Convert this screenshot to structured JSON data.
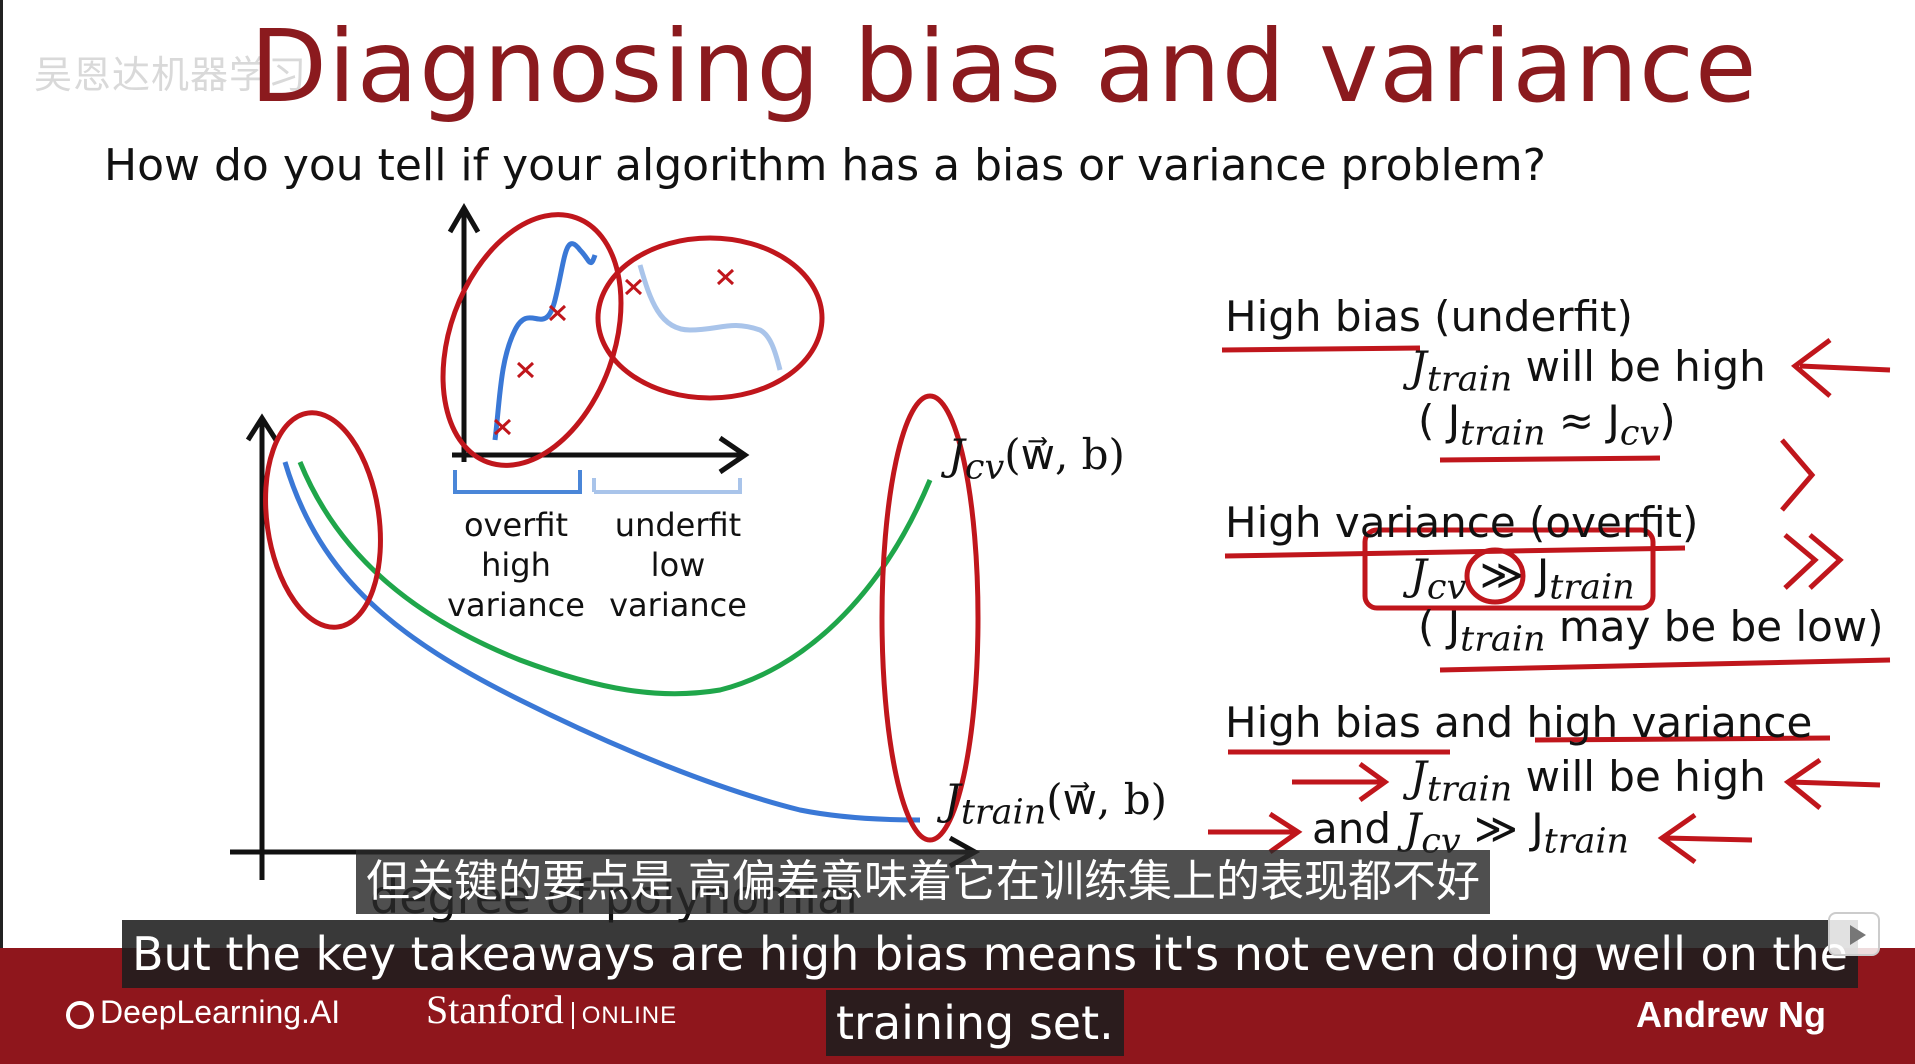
{
  "slide": {
    "watermark": "吴恩达机器学习",
    "title": "Diagnosing bias and variance",
    "question": "How do you tell if your algorithm has a bias or variance problem?",
    "x_axis_label": "degree of polynomial",
    "inset": {
      "left_label": [
        "overfit",
        "high",
        "variance"
      ],
      "right_label": [
        "underfit",
        "low",
        "variance"
      ]
    },
    "curve_labels": {
      "jcv": "J",
      "jcv_sub": "cv",
      "jcv_args": "(w⃗, b)",
      "jtrain": "J",
      "jtrain_sub": "train",
      "jtrain_args": "(w⃗, b)"
    },
    "right": {
      "high_bias_heading": "High bias (underfit)",
      "high_bias_line1_j": "J",
      "high_bias_line1_sub": "train",
      "high_bias_line1_rest": " will be high",
      "high_bias_line2": "( J",
      "high_bias_line2_sub1": "train",
      "high_bias_line2_mid": " ≈ J",
      "high_bias_line2_sub2": "cv",
      "high_bias_line2_end": ")",
      "high_var_heading": "High variance (overfit)",
      "high_var_line1_j": "J",
      "high_var_line1_sub": "cv",
      "high_var_line1_op": " ≫ J",
      "high_var_line1_sub2": "train",
      "high_var_line2_open": "( J",
      "high_var_line2_sub": "train",
      "high_var_line2_rest": " may be be low)",
      "both_heading": "High bias and high variance",
      "both_line1_j": "J",
      "both_line1_sub": "train",
      "both_line1_rest": " will be high",
      "both_line2_and": "and ",
      "both_line2_j": "J",
      "both_line2_sub": "cv",
      "both_line2_op": " ≫ J",
      "both_line2_sub2": "train"
    }
  },
  "footer": {
    "logo_deeplearning": "DeepLearning.AI",
    "logo_stanford": "Stanford",
    "logo_online": "ONLINE",
    "presenter": "Andrew Ng"
  },
  "subtitles": {
    "zh": "但关键的要点是 高偏差意味着它在训练集上的表现都不好",
    "en_line1": "But the key takeaways are high bias means it's not even doing well on the",
    "en_line2": "training set."
  },
  "colors": {
    "title": "#8b1a1e",
    "annotation_red": "#c0161c",
    "jcv_curve": "#1fa64a",
    "jtrain_curve": "#3a78d6",
    "footer_bg": "#8f161c"
  },
  "icons": {
    "video_control": "play-icon"
  }
}
